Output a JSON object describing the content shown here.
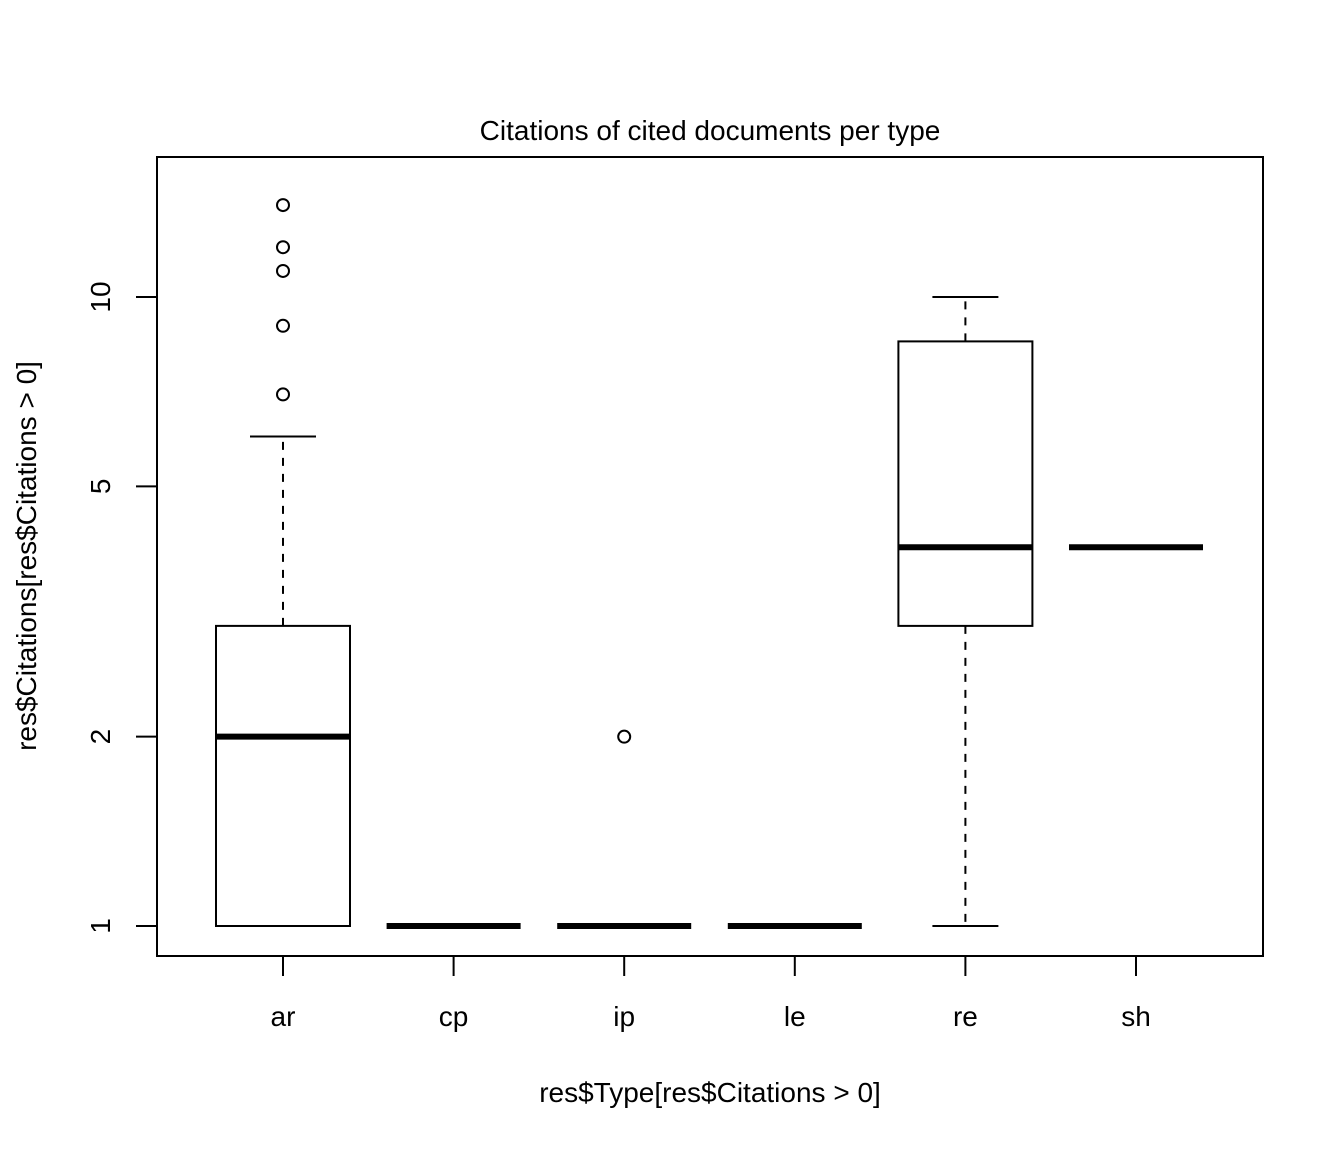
{
  "chart_data": {
    "type": "boxplot",
    "title": "Citations of cited documents per type",
    "xlabel": "res$Type[res$Citations > 0]",
    "ylabel": "res$Citations[res$Citations > 0]",
    "y_scale": "log",
    "ylim": [
      0.9,
      14
    ],
    "y_ticks": [
      1,
      2,
      5,
      10
    ],
    "categories": [
      "ar",
      "cp",
      "ip",
      "le",
      "re",
      "sh"
    ],
    "boxes": [
      {
        "name": "ar",
        "lower_whisker": 1,
        "q1": 1,
        "median": 2,
        "q3": 3,
        "upper_whisker": 6,
        "outliers": [
          7,
          9,
          11,
          12,
          14
        ]
      },
      {
        "name": "cp",
        "lower_whisker": 1,
        "q1": 1,
        "median": 1,
        "q3": 1,
        "upper_whisker": 1,
        "outliers": []
      },
      {
        "name": "ip",
        "lower_whisker": 1,
        "q1": 1,
        "median": 1,
        "q3": 1,
        "upper_whisker": 1,
        "outliers": [
          2
        ]
      },
      {
        "name": "le",
        "lower_whisker": 1,
        "q1": 1,
        "median": 1,
        "q3": 1,
        "upper_whisker": 1,
        "outliers": []
      },
      {
        "name": "re",
        "lower_whisker": 1,
        "q1": 3,
        "median": 4,
        "q3": 8.5,
        "upper_whisker": 10,
        "outliers": []
      },
      {
        "name": "sh",
        "lower_whisker": 4,
        "q1": 4,
        "median": 4,
        "q3": 4,
        "upper_whisker": 4,
        "outliers": []
      }
    ]
  }
}
